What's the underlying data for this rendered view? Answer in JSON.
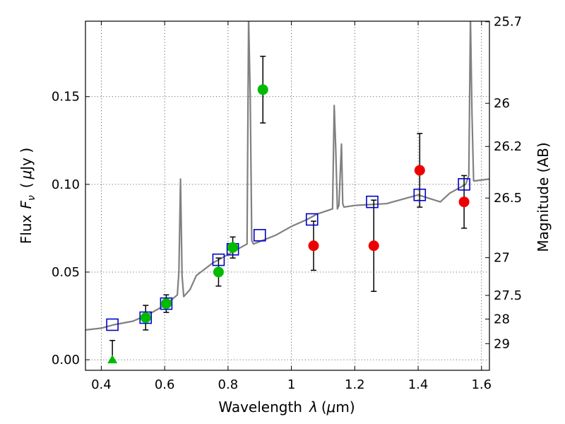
{
  "chart_data": {
    "type": "scatter",
    "title": "",
    "xlabel": "Wavelength",
    "xlabel_symbol": "λ",
    "xlabel_unit_open": "(",
    "xlabel_unit_mu": "μ",
    "xlabel_unit_rest": "m)",
    "ylabel": "Flux",
    "ylabel_symbol": "F",
    "ylabel_sub": "ν",
    "ylabel_unit_open": "(",
    "ylabel_unit_mu": "μ",
    "ylabel_unit_rest": "Jy )",
    "y2label": "Magnitude (AB)",
    "xlim": [
      0.35,
      1.625
    ],
    "ylim": [
      -0.006,
      0.193
    ],
    "grid": true,
    "xticks": [
      0.4,
      0.6,
      0.8,
      1.0,
      1.2,
      1.4,
      1.6
    ],
    "xtick_labels": [
      "0.4",
      "0.6",
      "0.8",
      "1",
      "1.2",
      "1.4",
      "1.6"
    ],
    "yticks": [
      0.0,
      0.05,
      0.1,
      0.15
    ],
    "ytick_labels": [
      "0.00",
      "0.05",
      "0.10",
      "0.15"
    ],
    "y2ticks": [
      {
        "label": "25.7",
        "flux": 0.1927
      },
      {
        "label": "26",
        "flux": 0.1462
      },
      {
        "label": "26.2",
        "flux": 0.1216
      },
      {
        "label": "26.5",
        "flux": 0.0922
      },
      {
        "label": "27",
        "flux": 0.0582
      },
      {
        "label": "27.5",
        "flux": 0.0367
      },
      {
        "label": "28",
        "flux": 0.0232
      },
      {
        "label": "29",
        "flux": 0.0092
      }
    ],
    "model_spectrum": {
      "color": "#808080",
      "x": [
        0.35,
        0.4,
        0.44,
        0.5,
        0.55,
        0.6,
        0.64,
        0.645,
        0.65,
        0.655,
        0.66,
        0.68,
        0.7,
        0.75,
        0.8,
        0.84,
        0.86,
        0.865,
        0.87,
        0.875,
        0.88,
        0.95,
        1.0,
        1.05,
        1.08,
        1.13,
        1.135,
        1.14,
        1.145,
        1.15,
        1.158,
        1.162,
        1.166,
        1.2,
        1.3,
        1.4,
        1.47,
        1.5,
        1.55,
        1.56,
        1.565,
        1.57,
        1.575,
        1.58,
        1.625
      ],
      "y": [
        0.017,
        0.018,
        0.02,
        0.022,
        0.026,
        0.031,
        0.037,
        0.05,
        0.103,
        0.048,
        0.036,
        0.04,
        0.048,
        0.055,
        0.06,
        0.064,
        0.066,
        0.195,
        0.15,
        0.068,
        0.066,
        0.071,
        0.076,
        0.08,
        0.083,
        0.086,
        0.145,
        0.12,
        0.086,
        0.088,
        0.123,
        0.089,
        0.087,
        0.088,
        0.089,
        0.094,
        0.09,
        0.095,
        0.1,
        0.105,
        0.195,
        0.14,
        0.102,
        0.102,
        0.103
      ]
    },
    "series": [
      {
        "marker": "open-square",
        "color": "#0000cc",
        "x": [
          0.435,
          0.54,
          0.605,
          0.77,
          0.815,
          0.9,
          1.065,
          1.255,
          1.405,
          1.545
        ],
        "y": [
          0.02,
          0.024,
          0.032,
          0.057,
          0.063,
          0.071,
          0.08,
          0.09,
          0.094,
          0.1
        ]
      },
      {
        "marker": "filled-circle",
        "color": "#00bb00",
        "x": [
          0.54,
          0.605,
          0.77,
          0.815,
          0.91
        ],
        "y": [
          0.024,
          0.032,
          0.05,
          0.064,
          0.154
        ],
        "err": [
          0.007,
          0.005,
          0.008,
          0.006,
          0.019
        ]
      },
      {
        "marker": "filled-circle",
        "color": "#ee0000",
        "x": [
          1.07,
          1.26,
          1.405,
          1.545
        ],
        "y": [
          0.065,
          0.065,
          0.108,
          0.09
        ],
        "err": [
          0.014,
          0.026,
          0.021,
          0.015
        ]
      },
      {
        "marker": "filled-triangle",
        "color": "#00bb00",
        "x": [
          0.435
        ],
        "y": [
          0.0
        ],
        "err_up": [
          0.011
        ]
      }
    ]
  }
}
